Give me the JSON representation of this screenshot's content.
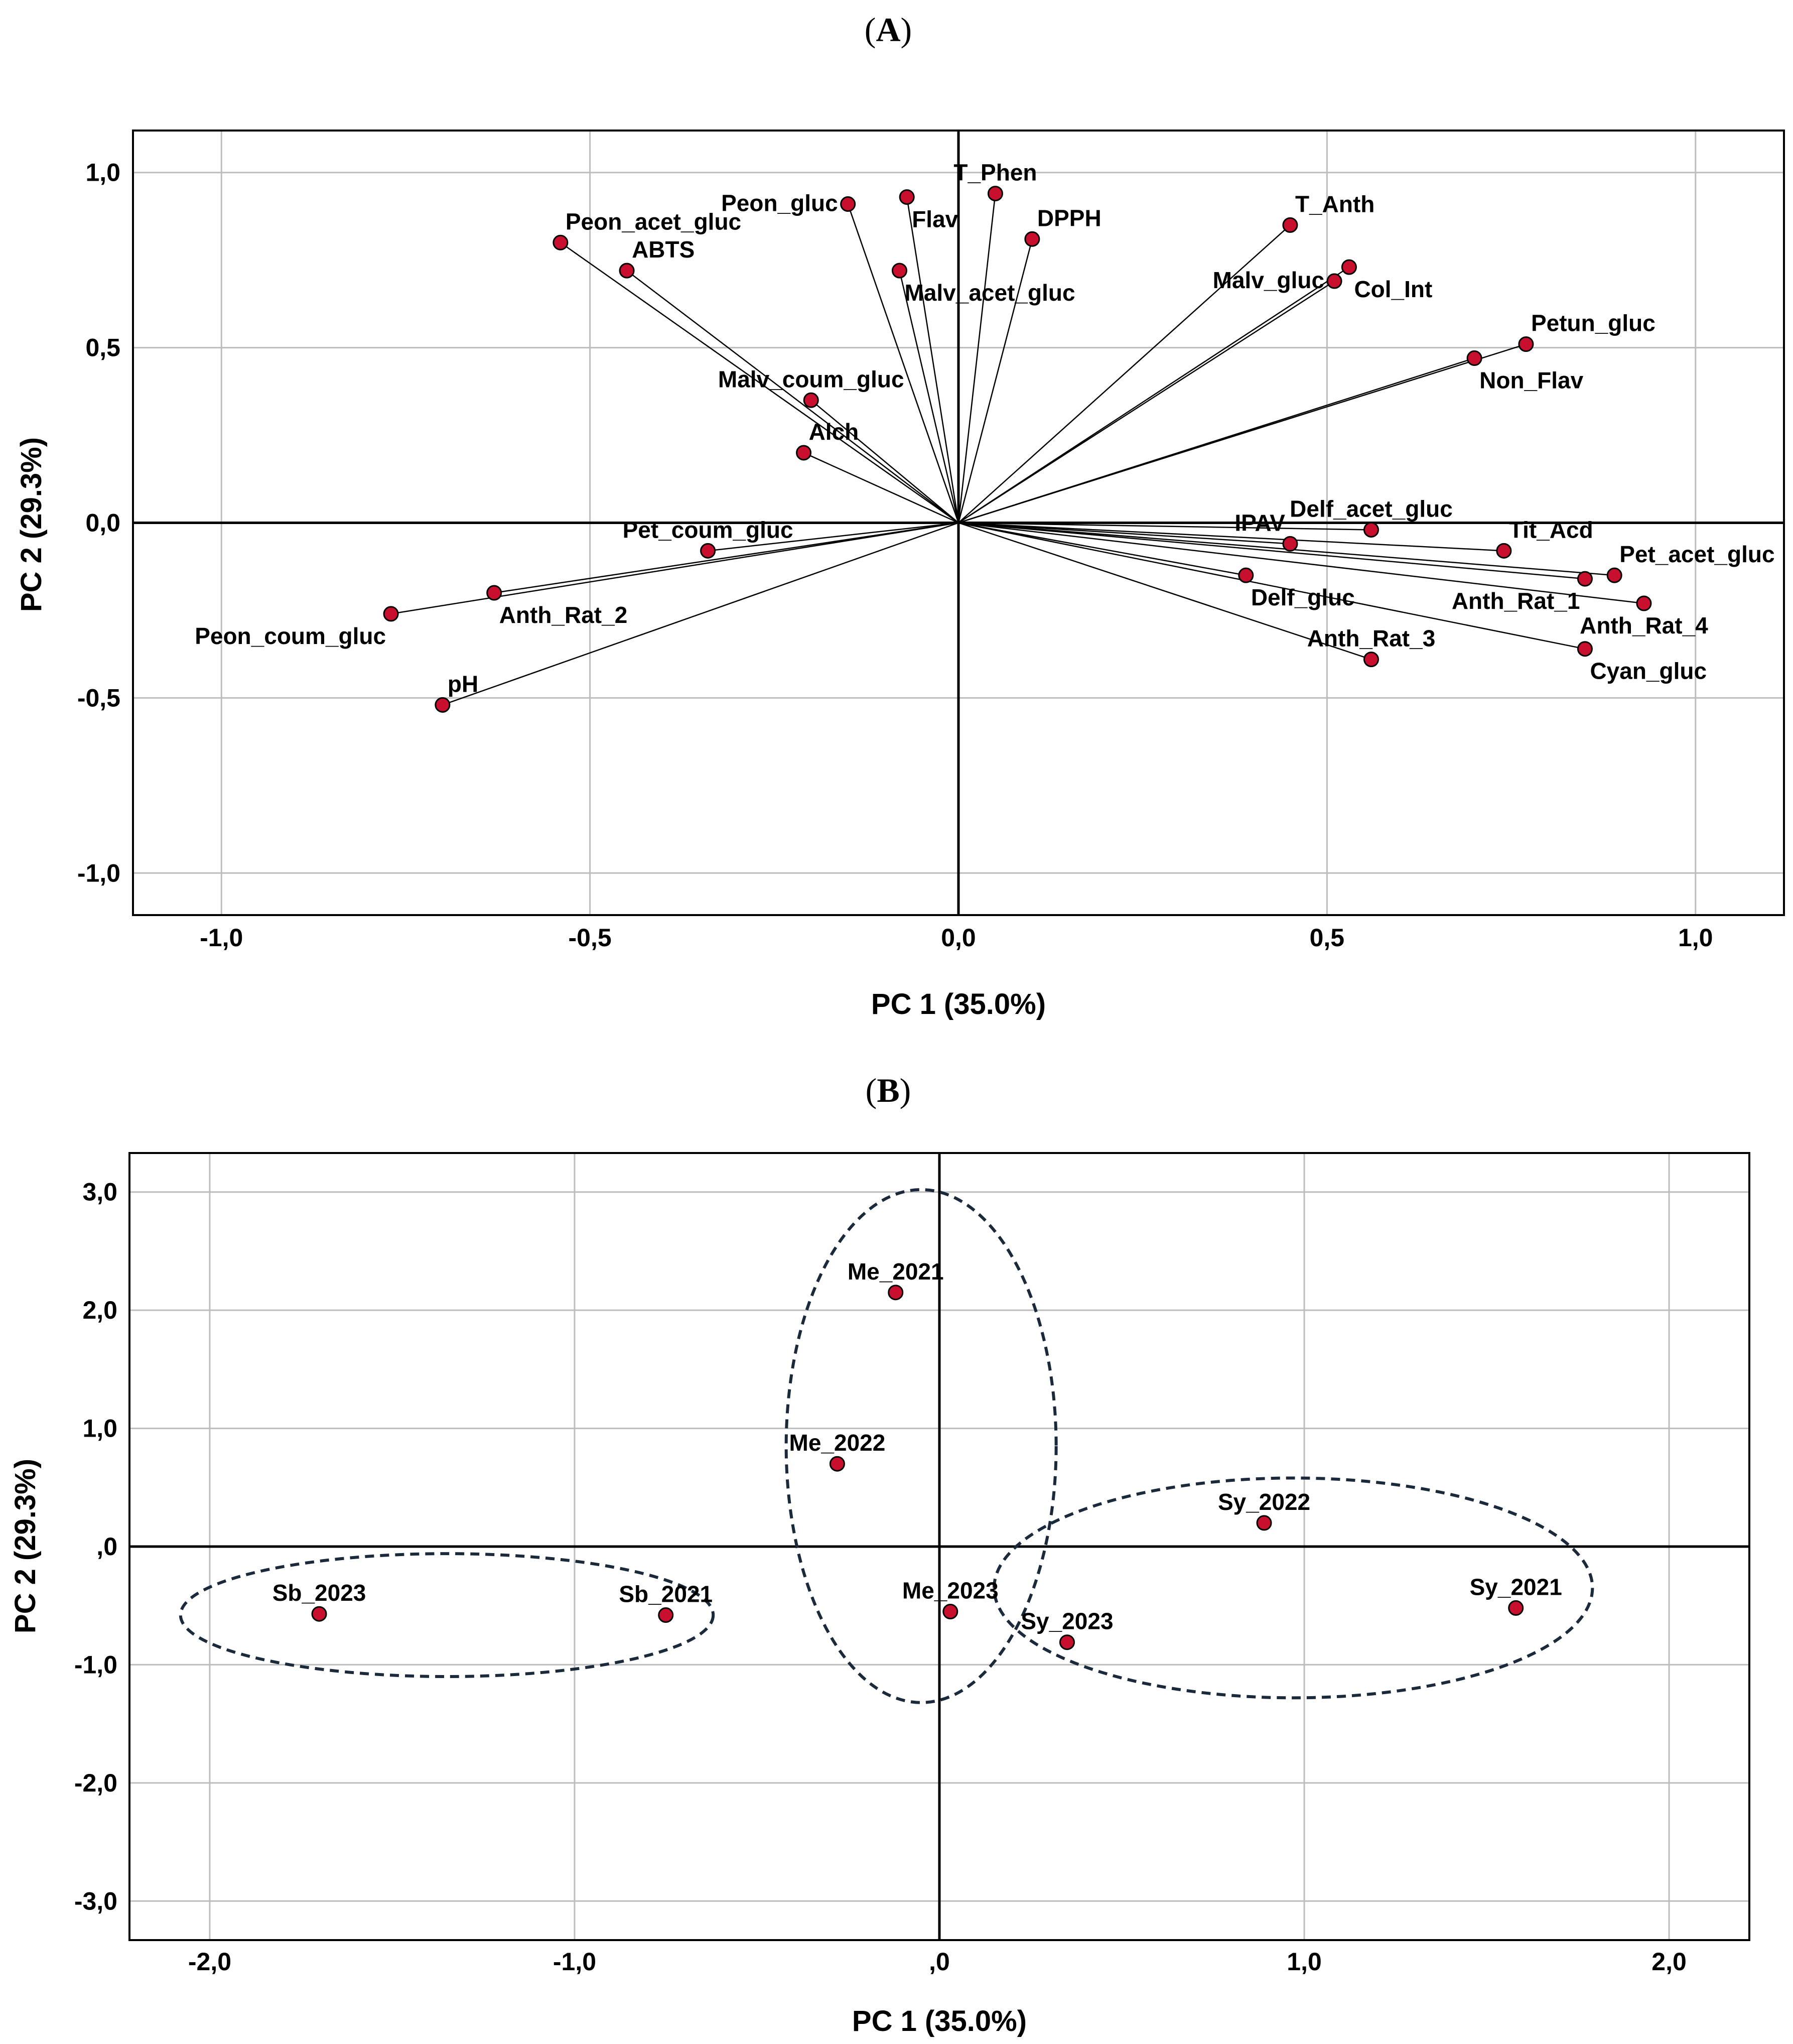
{
  "chart_data": [
    {
      "id": "A",
      "type": "scatter",
      "subtype": "loading-plot",
      "panel_label": "A",
      "xlabel": "PC 1 (35.0%)",
      "ylabel": "PC 2 (29.3%)",
      "xlim": [
        -1.12,
        1.12
      ],
      "ylim": [
        -1.12,
        1.12
      ],
      "xticks": [
        {
          "v": -1.0,
          "label": "-1,0"
        },
        {
          "v": -0.5,
          "label": "-0,5"
        },
        {
          "v": 0.0,
          "label": "0,0"
        },
        {
          "v": 0.5,
          "label": "0,5"
        },
        {
          "v": 1.0,
          "label": "1,0"
        }
      ],
      "yticks": [
        {
          "v": 1.0,
          "label": "1,0"
        },
        {
          "v": 0.5,
          "label": "0,5"
        },
        {
          "v": 0.0,
          "label": "0,0"
        },
        {
          "v": -0.5,
          "label": "-0,5"
        },
        {
          "v": -1.0,
          "label": "-1,0"
        }
      ],
      "grid": true,
      "vectors_from_origin": true,
      "points": [
        {
          "label": "T_Phen",
          "x": 0.05,
          "y": 0.94,
          "pos": "above"
        },
        {
          "label": "Flav",
          "x": -0.07,
          "y": 0.93,
          "pos": "below-right"
        },
        {
          "label": "Peon_gluc",
          "x": -0.15,
          "y": 0.91,
          "pos": "left"
        },
        {
          "label": "DPPH",
          "x": 0.1,
          "y": 0.81,
          "pos": "above-right"
        },
        {
          "label": "Peon_acet_gluc",
          "x": -0.54,
          "y": 0.8,
          "pos": "above-right"
        },
        {
          "label": "ABTS",
          "x": -0.45,
          "y": 0.72,
          "pos": "above-right"
        },
        {
          "label": "Malv_acet_gluc",
          "x": -0.08,
          "y": 0.72,
          "pos": "below-right"
        },
        {
          "label": "T_Anth",
          "x": 0.45,
          "y": 0.85,
          "pos": "above-right"
        },
        {
          "label": "Malv_gluc",
          "x": 0.51,
          "y": 0.69,
          "pos": "left"
        },
        {
          "label": "Col_Int",
          "x": 0.53,
          "y": 0.73,
          "pos": "below-right"
        },
        {
          "label": "Petun_gluc",
          "x": 0.77,
          "y": 0.51,
          "pos": "above-right"
        },
        {
          "label": "Non_Flav",
          "x": 0.7,
          "y": 0.47,
          "pos": "below-right"
        },
        {
          "label": "Malv_coum_gluc",
          "x": -0.2,
          "y": 0.35,
          "pos": "above"
        },
        {
          "label": "Alch",
          "x": -0.21,
          "y": 0.2,
          "pos": "above-right"
        },
        {
          "label": "Delf_acet_gluc",
          "x": 0.56,
          "y": -0.02,
          "pos": "above"
        },
        {
          "label": "Tit_Acd",
          "x": 0.74,
          "y": -0.08,
          "pos": "above-right"
        },
        {
          "label": "IPAV",
          "x": 0.45,
          "y": -0.06,
          "pos": "above-left"
        },
        {
          "label": "Pet_acet_gluc",
          "x": 0.89,
          "y": -0.15,
          "pos": "above-right"
        },
        {
          "label": "Anth_Rat_1",
          "x": 0.85,
          "y": -0.16,
          "pos": "below-left"
        },
        {
          "label": "Delf_gluc",
          "x": 0.39,
          "y": -0.15,
          "pos": "below-right"
        },
        {
          "label": "Anth_Rat_4",
          "x": 0.93,
          "y": -0.23,
          "pos": "below"
        },
        {
          "label": "Anth_Rat_3",
          "x": 0.56,
          "y": -0.39,
          "pos": "above"
        },
        {
          "label": "Cyan_gluc",
          "x": 0.85,
          "y": -0.36,
          "pos": "below-right"
        },
        {
          "label": "Pet_coum_gluc",
          "x": -0.34,
          "y": -0.08,
          "pos": "above"
        },
        {
          "label": "Anth_Rat_2",
          "x": -0.63,
          "y": -0.2,
          "pos": "below-right"
        },
        {
          "label": "Peon_coum_gluc",
          "x": -0.77,
          "y": -0.26,
          "pos": "below-left"
        },
        {
          "label": "pH",
          "x": -0.7,
          "y": -0.52,
          "pos": "above-right"
        }
      ]
    },
    {
      "id": "B",
      "type": "scatter",
      "subtype": "score-plot",
      "panel_label": "B",
      "xlabel": "PC 1 (35.0%)",
      "ylabel": "PC 2 (29.3%)",
      "xlim": [
        -2.22,
        2.22
      ],
      "ylim": [
        -3.33,
        3.33
      ],
      "xticks": [
        {
          "v": -2.0,
          "label": "-2,0"
        },
        {
          "v": -1.0,
          "label": "-1,0"
        },
        {
          "v": 0.0,
          "label": ",0"
        },
        {
          "v": 1.0,
          "label": "1,0"
        },
        {
          "v": 2.0,
          "label": "2,0"
        }
      ],
      "yticks": [
        {
          "v": 3.0,
          "label": "3,0"
        },
        {
          "v": 2.0,
          "label": "2,0"
        },
        {
          "v": 1.0,
          "label": "1,0"
        },
        {
          "v": 0.0,
          "label": ",0"
        },
        {
          "v": -1.0,
          "label": "-1,0"
        },
        {
          "v": -2.0,
          "label": "-2,0"
        },
        {
          "v": -3.0,
          "label": "-3,0"
        }
      ],
      "grid": true,
      "points": [
        {
          "label": "Me_2021",
          "x": -0.12,
          "y": 2.15,
          "pos": "above"
        },
        {
          "label": "Me_2022",
          "x": -0.28,
          "y": 0.7,
          "pos": "above"
        },
        {
          "label": "Me_2023",
          "x": 0.03,
          "y": -0.55,
          "pos": "above"
        },
        {
          "label": "Sy_2022",
          "x": 0.89,
          "y": 0.2,
          "pos": "above"
        },
        {
          "label": "Sy_2021",
          "x": 1.58,
          "y": -0.52,
          "pos": "above"
        },
        {
          "label": "Sy_2023",
          "x": 0.35,
          "y": -0.81,
          "pos": "above"
        },
        {
          "label": "Sb_2023",
          "x": -1.7,
          "y": -0.57,
          "pos": "above"
        },
        {
          "label": "Sb_2021",
          "x": -0.75,
          "y": -0.58,
          "pos": "above"
        }
      ],
      "ellipses": [
        {
          "group": "Me",
          "cx": -0.05,
          "cy": 0.85,
          "rx": 0.37,
          "ry": 2.17
        },
        {
          "group": "Sy",
          "cx": 0.97,
          "cy": -0.35,
          "rx": 0.82,
          "ry": 0.93
        },
        {
          "group": "Sb",
          "cx": -1.35,
          "cy": -0.58,
          "rx": 0.73,
          "ry": 0.52
        }
      ]
    }
  ]
}
